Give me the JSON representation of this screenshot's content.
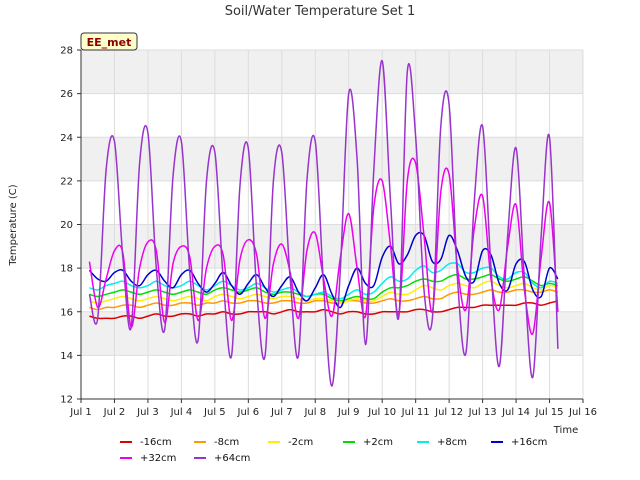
{
  "chart_data": {
    "type": "line",
    "title": "Soil/Water Temperature Set 1",
    "xlabel": "Time",
    "ylabel": "Temperature (C)",
    "badge": "EE_met",
    "xlim": [
      1,
      16
    ],
    "ylim": [
      12,
      28
    ],
    "x_ticks": [
      1,
      2,
      3,
      4,
      5,
      6,
      7,
      8,
      9,
      10,
      11,
      12,
      13,
      14,
      15,
      16
    ],
    "x_tick_labels": [
      "Jul 1",
      "Jul 2",
      "Jul 3",
      "Jul 4",
      "Jul 5",
      "Jul 6",
      "Jul 7",
      "Jul 8",
      "Jul 9",
      "Jul 10",
      "Jul 11",
      "Jul 12",
      "Jul 13",
      "Jul 14",
      "Jul 15",
      "Jul 16"
    ],
    "y_ticks": [
      12,
      14,
      16,
      18,
      20,
      22,
      24,
      26,
      28
    ],
    "y_tick_labels": [
      "12",
      "14",
      "16",
      "18",
      "20",
      "22",
      "24",
      "26",
      "28"
    ],
    "grid": true,
    "legend_position": "bottom",
    "x": [
      1.25,
      1.5,
      1.75,
      2.0,
      2.25,
      2.5,
      2.75,
      3.0,
      3.25,
      3.5,
      3.75,
      4.0,
      4.25,
      4.5,
      4.75,
      5.0,
      5.25,
      5.5,
      5.75,
      6.0,
      6.25,
      6.5,
      6.75,
      7.0,
      7.25,
      7.5,
      7.75,
      8.0,
      8.25,
      8.5,
      8.75,
      9.0,
      9.25,
      9.5,
      9.75,
      10.0,
      10.25,
      10.5,
      10.75,
      11.0,
      11.25,
      11.5,
      11.75,
      12.0,
      12.25,
      12.5,
      12.75,
      13.0,
      13.25,
      13.5,
      13.75,
      14.0,
      14.25,
      14.5,
      14.75,
      15.0,
      15.25
    ],
    "series": [
      {
        "name": "-16cm",
        "color": "#dd0000",
        "values": [
          15.8,
          15.7,
          15.7,
          15.7,
          15.8,
          15.8,
          15.7,
          15.8,
          15.9,
          15.8,
          15.8,
          15.9,
          15.9,
          15.8,
          15.9,
          15.9,
          16.0,
          15.9,
          15.9,
          16.0,
          16.0,
          16.0,
          15.9,
          16.0,
          16.1,
          16.0,
          16.0,
          16.0,
          16.1,
          16.0,
          15.9,
          16.0,
          16.0,
          15.9,
          15.9,
          16.0,
          16.0,
          16.0,
          16.0,
          16.1,
          16.1,
          16.0,
          16.0,
          16.1,
          16.2,
          16.2,
          16.2,
          16.3,
          16.3,
          16.3,
          16.3,
          16.3,
          16.4,
          16.4,
          16.3,
          16.4,
          16.5
        ]
      },
      {
        "name": "-8cm",
        "color": "#ff9900",
        "values": [
          16.2,
          16.1,
          16.2,
          16.2,
          16.3,
          16.3,
          16.2,
          16.3,
          16.4,
          16.3,
          16.3,
          16.4,
          16.4,
          16.3,
          16.4,
          16.4,
          16.5,
          16.4,
          16.4,
          16.5,
          16.5,
          16.4,
          16.4,
          16.5,
          16.5,
          16.4,
          16.4,
          16.5,
          16.5,
          16.4,
          16.4,
          16.5,
          16.5,
          16.4,
          16.4,
          16.5,
          16.6,
          16.5,
          16.5,
          16.6,
          16.7,
          16.6,
          16.6,
          16.8,
          16.9,
          16.8,
          16.8,
          16.9,
          17.0,
          16.9,
          16.9,
          17.0,
          17.0,
          16.9,
          16.9,
          17.0,
          16.9
        ]
      },
      {
        "name": "-2cm",
        "color": "#ffee00",
        "values": [
          16.5,
          16.4,
          16.5,
          16.6,
          16.7,
          16.6,
          16.5,
          16.6,
          16.7,
          16.6,
          16.5,
          16.6,
          16.7,
          16.6,
          16.5,
          16.7,
          16.8,
          16.7,
          16.6,
          16.7,
          16.8,
          16.7,
          16.6,
          16.7,
          16.7,
          16.6,
          16.5,
          16.6,
          16.6,
          16.5,
          16.4,
          16.5,
          16.6,
          16.5,
          16.5,
          16.7,
          16.9,
          16.8,
          16.8,
          17.0,
          17.2,
          17.1,
          17.0,
          17.2,
          17.3,
          17.2,
          17.1,
          17.3,
          17.4,
          17.2,
          17.1,
          17.2,
          17.3,
          17.1,
          17.0,
          17.2,
          17.1
        ]
      },
      {
        "name": "+2cm",
        "color": "#00dd00",
        "values": [
          16.8,
          16.7,
          16.8,
          16.9,
          17.0,
          16.9,
          16.8,
          16.9,
          17.0,
          16.9,
          16.8,
          16.9,
          17.0,
          16.9,
          16.8,
          17.0,
          17.1,
          17.0,
          16.9,
          17.0,
          17.1,
          16.9,
          16.8,
          16.9,
          16.9,
          16.8,
          16.7,
          16.8,
          16.8,
          16.6,
          16.5,
          16.6,
          16.7,
          16.6,
          16.6,
          16.9,
          17.1,
          17.1,
          17.2,
          17.4,
          17.5,
          17.4,
          17.4,
          17.6,
          17.7,
          17.5,
          17.5,
          17.6,
          17.7,
          17.5,
          17.4,
          17.5,
          17.6,
          17.4,
          17.2,
          17.3,
          17.2
        ]
      },
      {
        "name": "+8cm",
        "color": "#00eeee",
        "values": [
          17.1,
          17.0,
          17.2,
          17.3,
          17.4,
          17.2,
          17.1,
          17.2,
          17.4,
          17.2,
          17.1,
          17.2,
          17.4,
          17.2,
          17.0,
          17.2,
          17.4,
          17.2,
          17.0,
          17.1,
          17.3,
          17.1,
          16.9,
          17.0,
          17.1,
          16.9,
          16.7,
          16.8,
          16.9,
          16.7,
          16.6,
          16.8,
          17.0,
          16.8,
          16.9,
          17.3,
          17.6,
          17.4,
          17.5,
          17.9,
          18.1,
          17.8,
          17.9,
          18.2,
          18.2,
          17.8,
          17.8,
          18.0,
          18.0,
          17.6,
          17.5,
          17.8,
          17.8,
          17.3,
          17.1,
          17.4,
          17.3
        ]
      },
      {
        "name": "+16cm",
        "color": "#0000cc",
        "values": [
          17.9,
          17.5,
          17.4,
          17.8,
          17.9,
          17.4,
          17.2,
          17.7,
          17.9,
          17.4,
          17.1,
          17.7,
          17.9,
          17.3,
          16.9,
          17.3,
          17.8,
          17.2,
          16.8,
          17.3,
          17.7,
          17.1,
          16.7,
          17.2,
          17.6,
          16.9,
          16.5,
          17.1,
          17.7,
          16.8,
          16.2,
          17.2,
          18.0,
          17.3,
          17.2,
          18.5,
          19.0,
          18.2,
          18.6,
          19.5,
          19.5,
          18.3,
          18.4,
          19.5,
          18.8,
          17.6,
          17.4,
          18.8,
          18.6,
          17.3,
          17.0,
          18.2,
          18.3,
          17.0,
          16.7,
          18.0,
          17.5
        ]
      },
      {
        "name": "+32cm",
        "color": "#ee00ee",
        "values": [
          18.3,
          16.2,
          17.5,
          18.8,
          18.7,
          15.3,
          18.0,
          19.2,
          18.8,
          15.5,
          18.2,
          19.0,
          18.5,
          15.6,
          18.0,
          19.0,
          18.6,
          15.6,
          18.4,
          19.3,
          18.6,
          15.7,
          18.2,
          19.1,
          17.8,
          15.7,
          18.8,
          19.6,
          17.5,
          15.8,
          18.5,
          20.5,
          18.0,
          15.8,
          20.8,
          22.0,
          19.0,
          15.9,
          22.0,
          22.8,
          19.5,
          16.0,
          21.5,
          22.3,
          18.0,
          16.1,
          19.8,
          21.3,
          17.5,
          16.1,
          19.0,
          20.9,
          17.0,
          15.0,
          18.5,
          21.0,
          16.0
        ]
      },
      {
        "name": "+64cm",
        "color": "#9933cc",
        "values": [
          16.8,
          15.7,
          22.5,
          23.8,
          18.5,
          15.3,
          22.8,
          24.2,
          18.0,
          15.2,
          22.2,
          23.8,
          17.8,
          14.7,
          22.0,
          23.3,
          17.5,
          14.0,
          21.8,
          23.5,
          17.0,
          14.0,
          22.0,
          23.3,
          17.5,
          14.0,
          22.0,
          23.8,
          17.2,
          12.6,
          18.0,
          26.0,
          23.0,
          14.5,
          22.5,
          27.5,
          21.0,
          15.8,
          27.0,
          24.0,
          17.0,
          15.7,
          24.5,
          25.5,
          17.5,
          14.1,
          21.0,
          24.5,
          18.0,
          13.5,
          19.5,
          23.5,
          17.5,
          13.0,
          19.5,
          24.0,
          14.3
        ]
      }
    ]
  }
}
